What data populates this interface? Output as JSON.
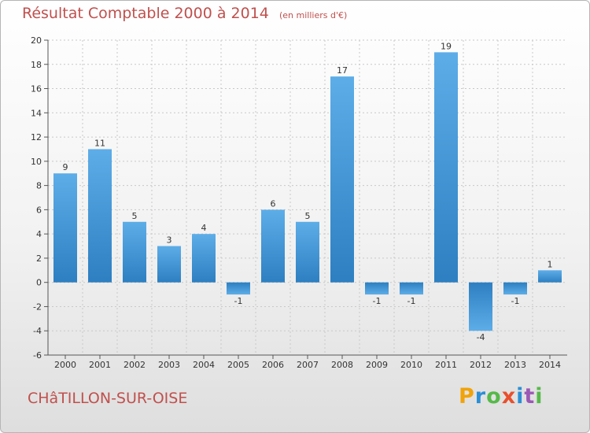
{
  "header": {
    "title": "Résultat Comptable 2000 à 2014",
    "unit": "(en milliers d'€)"
  },
  "footer": {
    "commune": "CHâTILLON-SUR-OISE",
    "logo": "Proxiti",
    "logo_colors": [
      "#f0a30a",
      "#2a8fd6",
      "#56b949",
      "#e8502e",
      "#2a8fd6",
      "#9b59b6",
      "#56b949"
    ]
  },
  "colors": {
    "bar_light": "#5dade8",
    "bar_dark": "#2d7fc1",
    "title": "#c0504d",
    "grid": "#c8c8c8"
  },
  "chart_data": {
    "type": "bar",
    "title": "Résultat Comptable 2000 à 2014",
    "subtitle": "(en milliers d'€)",
    "xlabel": "",
    "ylabel": "",
    "categories": [
      "2000",
      "2001",
      "2002",
      "2003",
      "2004",
      "2005",
      "2006",
      "2007",
      "2008",
      "2009",
      "2010",
      "2011",
      "2012",
      "2013",
      "2014"
    ],
    "values": [
      9,
      11,
      5,
      3,
      4,
      -1,
      6,
      5,
      17,
      -1,
      -1,
      19,
      -4,
      -1,
      1
    ],
    "data_labels": [
      "9",
      "11",
      "5",
      "3",
      "4",
      "-1",
      "6",
      "5",
      "17",
      "-1",
      "-1",
      "19",
      "-4",
      "-1",
      "1"
    ],
    "ylim": [
      -6,
      20
    ],
    "yticks": [
      -6,
      -4,
      -2,
      0,
      2,
      4,
      6,
      8,
      10,
      12,
      14,
      16,
      18,
      20
    ],
    "ytick_labels": [
      "-6",
      "-4",
      "-2",
      "0",
      "2",
      "4",
      "6",
      "8",
      "10",
      "12",
      "14",
      "16",
      "18",
      "20"
    ],
    "grid": true,
    "legend": "none"
  }
}
